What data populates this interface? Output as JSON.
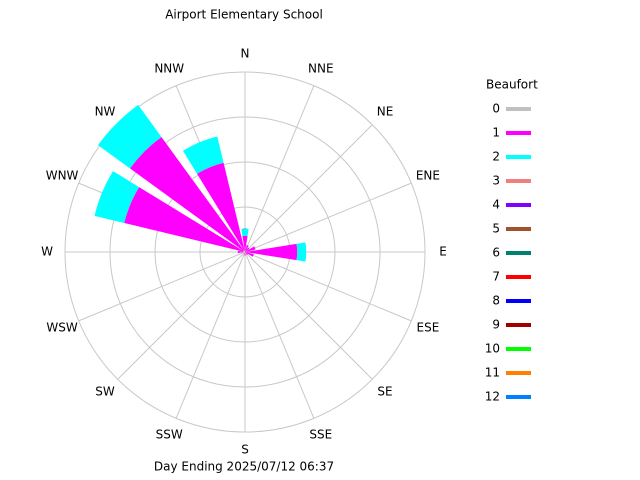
{
  "chart_data": {
    "type": "windrose",
    "title": "Airport Elementary School",
    "footer": "Day Ending 2025/07/12 06:37",
    "legend_title": "Beaufort",
    "categories": [
      "N",
      "NNE",
      "NE",
      "ENE",
      "E",
      "ESE",
      "SE",
      "SSE",
      "S",
      "SSW",
      "SW",
      "WSW",
      "W",
      "WNW",
      "NW",
      "NNW"
    ],
    "rlim": [
      0,
      100
    ],
    "series": [
      {
        "name": "0",
        "color": "#c0c0c0",
        "values": [
          1,
          0,
          0,
          0,
          1,
          0,
          0,
          0,
          0,
          0,
          0,
          0,
          1,
          1,
          1,
          1
        ]
      },
      {
        "name": "1",
        "color": "#ff00ff",
        "values": [
          8,
          4,
          3,
          6,
          28,
          5,
          2,
          0,
          2,
          0,
          0,
          0,
          3,
          68,
          78,
          50
        ]
      },
      {
        "name": "2",
        "color": "#00ffff",
        "values": [
          4,
          0,
          0,
          0,
          5,
          0,
          0,
          0,
          0,
          0,
          0,
          0,
          0,
          17,
          22,
          15
        ]
      },
      {
        "name": "3",
        "color": "#f08080",
        "values": [
          0,
          0,
          0,
          0,
          0,
          0,
          0,
          0,
          0,
          0,
          0,
          0,
          0,
          0,
          0,
          0
        ]
      },
      {
        "name": "4",
        "color": "#8000ff",
        "values": [
          0,
          0,
          0,
          0,
          0,
          0,
          0,
          0,
          0,
          0,
          0,
          0,
          0,
          0,
          0,
          0
        ]
      },
      {
        "name": "5",
        "color": "#a0522d",
        "values": [
          0,
          0,
          0,
          0,
          0,
          0,
          0,
          0,
          0,
          0,
          0,
          0,
          0,
          0,
          0,
          0
        ]
      },
      {
        "name": "6",
        "color": "#008070",
        "values": [
          0,
          0,
          0,
          0,
          0,
          0,
          0,
          0,
          0,
          0,
          0,
          0,
          0,
          0,
          0,
          0
        ]
      },
      {
        "name": "7",
        "color": "#ff0000",
        "values": [
          0,
          0,
          0,
          0,
          0,
          0,
          0,
          0,
          0,
          0,
          0,
          0,
          0,
          0,
          0,
          0
        ]
      },
      {
        "name": "8",
        "color": "#0000ff",
        "values": [
          0,
          0,
          0,
          0,
          0,
          0,
          0,
          0,
          0,
          0,
          0,
          0,
          0,
          0,
          0,
          0
        ]
      },
      {
        "name": "9",
        "color": "#a00000",
        "values": [
          0,
          0,
          0,
          0,
          0,
          0,
          0,
          0,
          0,
          0,
          0,
          0,
          0,
          0,
          0,
          0
        ]
      },
      {
        "name": "10",
        "color": "#00ff00",
        "values": [
          0,
          0,
          0,
          0,
          0,
          0,
          0,
          0,
          0,
          0,
          0,
          0,
          0,
          0,
          0,
          0
        ]
      },
      {
        "name": "11",
        "color": "#ff8000",
        "values": [
          0,
          0,
          0,
          0,
          0,
          0,
          0,
          0,
          0,
          0,
          0,
          0,
          0,
          0,
          0,
          0
        ]
      },
      {
        "name": "12",
        "color": "#0080ff",
        "values": [
          0,
          0,
          0,
          0,
          0,
          0,
          0,
          0,
          0,
          0,
          0,
          0,
          0,
          0,
          0,
          0
        ]
      }
    ]
  }
}
